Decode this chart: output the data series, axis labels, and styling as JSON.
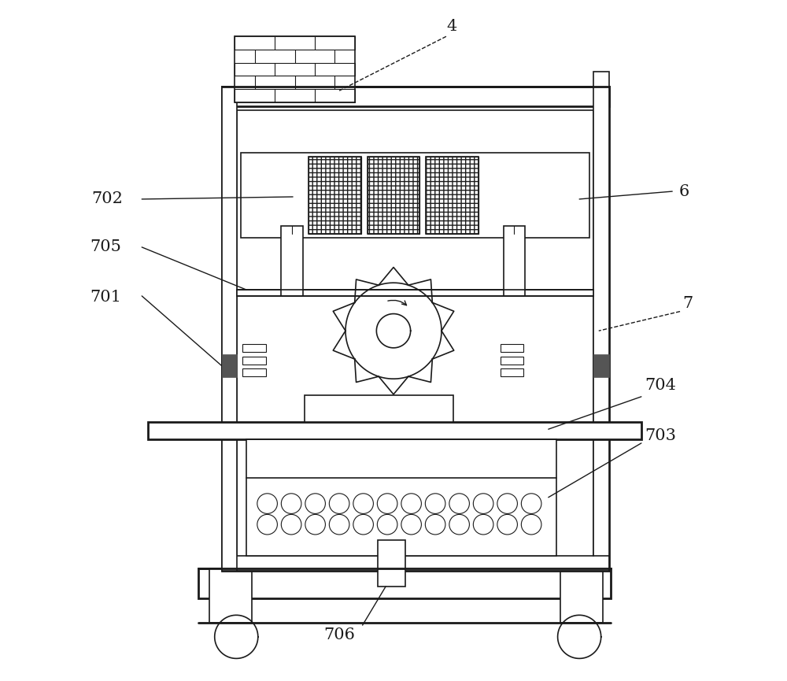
{
  "bg_color": "#ffffff",
  "line_color": "#1a1a1a",
  "fig_width": 10.0,
  "fig_height": 8.65,
  "label_fontsize": 15
}
